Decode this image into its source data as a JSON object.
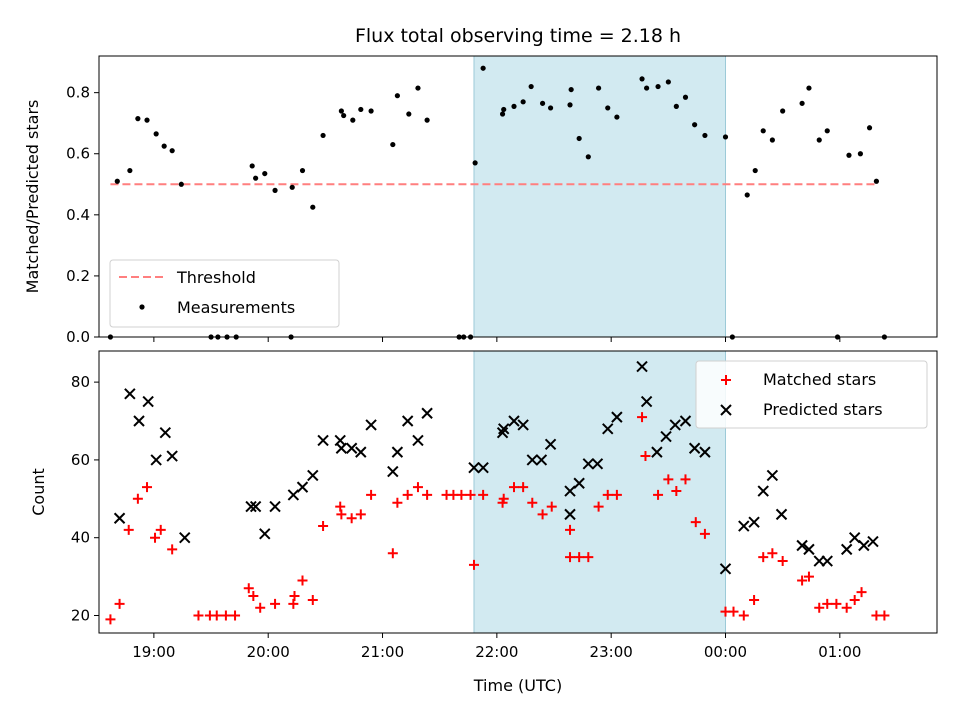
{
  "chart_data": {
    "title": "Flux total observing time = 2.18 h",
    "xlabel": "Time (UTC)",
    "x_units": "hours since 18:00 UTC (tick labels show clock time)",
    "xlim": [
      0.52,
      7.85
    ],
    "x_ticks": [
      {
        "value": 1,
        "label": "19:00"
      },
      {
        "value": 2,
        "label": "20:00"
      },
      {
        "value": 3,
        "label": "21:00"
      },
      {
        "value": 4,
        "label": "22:00"
      },
      {
        "value": 5,
        "label": "23:00"
      },
      {
        "value": 6,
        "label": "00:00"
      },
      {
        "value": 7,
        "label": "01:00"
      }
    ],
    "shaded_span": {
      "x0": 3.8,
      "x1": 6.0,
      "color": "#add8e6"
    },
    "panels": [
      {
        "type": "scatter",
        "ylabel": "Matched/Predicted stars",
        "ylim": [
          0,
          0.92
        ],
        "y_ticks": [
          "0.0",
          "0.2",
          "0.4",
          "0.6",
          "0.8"
        ],
        "y_tick_values": [
          0,
          0.2,
          0.4,
          0.6,
          0.8
        ],
        "legend": {
          "location": "lower left",
          "entries": [
            "Threshold",
            "Measurements"
          ]
        },
        "threshold": {
          "name": "Threshold",
          "y": 0.5,
          "x0": 0.62,
          "x1": 7.32,
          "color": "#ff7f7f",
          "style": "dashed"
        },
        "series": [
          {
            "name": "Measurements",
            "marker": "dot",
            "color": "#000000",
            "points": [
              [
                0.62,
                0.0
              ],
              [
                0.68,
                0.51
              ],
              [
                0.79,
                0.545
              ],
              [
                0.86,
                0.715
              ],
              [
                0.94,
                0.71
              ],
              [
                1.02,
                0.665
              ],
              [
                1.09,
                0.625
              ],
              [
                1.16,
                0.61
              ],
              [
                1.24,
                0.5
              ],
              [
                1.5,
                0.0
              ],
              [
                1.56,
                0.0
              ],
              [
                1.64,
                0.0
              ],
              [
                1.72,
                0.0
              ],
              [
                1.86,
                0.56
              ],
              [
                1.89,
                0.52
              ],
              [
                1.97,
                0.535
              ],
              [
                2.06,
                0.48
              ],
              [
                2.21,
                0.49
              ],
              [
                2.3,
                0.545
              ],
              [
                2.39,
                0.425
              ],
              [
                2.48,
                0.66
              ],
              [
                2.2,
                0.0
              ],
              [
                2.64,
                0.74
              ],
              [
                2.66,
                0.725
              ],
              [
                2.74,
                0.71
              ],
              [
                2.81,
                0.745
              ],
              [
                2.9,
                0.74
              ],
              [
                3.09,
                0.63
              ],
              [
                3.13,
                0.79
              ],
              [
                3.23,
                0.73
              ],
              [
                3.31,
                0.815
              ],
              [
                3.39,
                0.71
              ],
              [
                3.67,
                0.0
              ],
              [
                3.71,
                0.0
              ],
              [
                3.77,
                0.0
              ],
              [
                3.81,
                0.57
              ],
              [
                3.88,
                0.88
              ],
              [
                4.05,
                0.73
              ],
              [
                4.06,
                0.745
              ],
              [
                4.15,
                0.755
              ],
              [
                4.23,
                0.77
              ],
              [
                4.3,
                0.82
              ],
              [
                4.4,
                0.765
              ],
              [
                4.47,
                0.75
              ],
              [
                4.64,
                0.76
              ],
              [
                4.65,
                0.81
              ],
              [
                4.72,
                0.65
              ],
              [
                4.8,
                0.59
              ],
              [
                4.89,
                0.815
              ],
              [
                4.97,
                0.75
              ],
              [
                5.05,
                0.72
              ],
              [
                5.27,
                0.845
              ],
              [
                5.31,
                0.815
              ],
              [
                5.41,
                0.82
              ],
              [
                5.5,
                0.835
              ],
              [
                5.57,
                0.755
              ],
              [
                5.65,
                0.785
              ],
              [
                5.73,
                0.695
              ],
              [
                5.82,
                0.66
              ],
              [
                6.0,
                0.655
              ],
              [
                6.06,
                0.0
              ],
              [
                6.19,
                0.465
              ],
              [
                6.26,
                0.545
              ],
              [
                6.33,
                0.675
              ],
              [
                6.41,
                0.645
              ],
              [
                6.5,
                0.74
              ],
              [
                6.67,
                0.765
              ],
              [
                6.73,
                0.815
              ],
              [
                6.82,
                0.645
              ],
              [
                6.89,
                0.675
              ],
              [
                6.98,
                0.0
              ],
              [
                7.08,
                0.595
              ],
              [
                7.18,
                0.6
              ],
              [
                7.26,
                0.685
              ],
              [
                7.32,
                0.51
              ],
              [
                7.39,
                0.0
              ]
            ]
          }
        ]
      },
      {
        "type": "scatter",
        "ylabel": "Count",
        "ylim": [
          15.5,
          88
        ],
        "y_ticks": [
          "20",
          "40",
          "60",
          "80"
        ],
        "y_tick_values": [
          20,
          40,
          60,
          80
        ],
        "legend": {
          "location": "upper right",
          "entries": [
            "Matched stars",
            "Predicted stars"
          ]
        },
        "series": [
          {
            "name": "Matched stars",
            "marker": "plus",
            "color": "#ff0000",
            "points": [
              [
                0.62,
                19
              ],
              [
                0.7,
                23
              ],
              [
                0.78,
                42
              ],
              [
                0.86,
                50
              ],
              [
                0.94,
                53
              ],
              [
                1.01,
                40
              ],
              [
                1.06,
                42
              ],
              [
                1.16,
                37
              ],
              [
                1.39,
                20
              ],
              [
                1.49,
                20
              ],
              [
                1.55,
                20
              ],
              [
                1.63,
                20
              ],
              [
                1.71,
                20
              ],
              [
                1.83,
                27
              ],
              [
                1.87,
                25
              ],
              [
                1.93,
                22
              ],
              [
                2.06,
                23
              ],
              [
                2.22,
                23
              ],
              [
                2.23,
                25
              ],
              [
                2.3,
                29
              ],
              [
                2.39,
                24
              ],
              [
                2.48,
                43
              ],
              [
                2.63,
                48
              ],
              [
                2.64,
                46
              ],
              [
                2.73,
                45
              ],
              [
                2.81,
                46
              ],
              [
                2.9,
                51
              ],
              [
                3.09,
                36
              ],
              [
                3.13,
                49
              ],
              [
                3.22,
                51
              ],
              [
                3.31,
                53
              ],
              [
                3.39,
                51
              ],
              [
                3.56,
                51
              ],
              [
                3.62,
                51
              ],
              [
                3.69,
                51
              ],
              [
                3.77,
                51
              ],
              [
                3.8,
                33
              ],
              [
                3.88,
                51
              ],
              [
                4.05,
                49
              ],
              [
                4.06,
                50
              ],
              [
                4.15,
                53
              ],
              [
                4.23,
                53
              ],
              [
                4.31,
                49
              ],
              [
                4.4,
                46
              ],
              [
                4.48,
                48
              ],
              [
                4.64,
                42
              ],
              [
                4.64,
                35
              ],
              [
                4.72,
                35
              ],
              [
                4.8,
                35
              ],
              [
                4.89,
                48
              ],
              [
                4.97,
                51
              ],
              [
                5.05,
                51
              ],
              [
                5.27,
                71
              ],
              [
                5.3,
                61
              ],
              [
                5.41,
                51
              ],
              [
                5.5,
                55
              ],
              [
                5.57,
                52
              ],
              [
                5.65,
                55
              ],
              [
                5.74,
                44
              ],
              [
                5.82,
                41
              ],
              [
                6.0,
                21
              ],
              [
                6.07,
                21
              ],
              [
                6.16,
                20
              ],
              [
                6.25,
                24
              ],
              [
                6.33,
                35
              ],
              [
                6.41,
                36
              ],
              [
                6.5,
                34
              ],
              [
                6.67,
                29
              ],
              [
                6.73,
                30
              ],
              [
                6.82,
                22
              ],
              [
                6.89,
                23
              ],
              [
                6.97,
                23
              ],
              [
                7.06,
                22
              ],
              [
                7.13,
                24
              ],
              [
                7.19,
                26
              ],
              [
                7.32,
                20
              ],
              [
                7.39,
                20
              ]
            ]
          },
          {
            "name": "Predicted stars",
            "marker": "x",
            "color": "#000000",
            "points": [
              [
                0.7,
                45
              ],
              [
                0.79,
                77
              ],
              [
                0.87,
                70
              ],
              [
                0.95,
                75
              ],
              [
                1.02,
                60
              ],
              [
                1.1,
                67
              ],
              [
                1.16,
                61
              ],
              [
                1.27,
                40
              ],
              [
                1.85,
                48
              ],
              [
                1.89,
                48
              ],
              [
                1.97,
                41
              ],
              [
                2.06,
                48
              ],
              [
                2.22,
                51
              ],
              [
                2.3,
                53
              ],
              [
                2.39,
                56
              ],
              [
                2.48,
                65
              ],
              [
                2.63,
                65
              ],
              [
                2.64,
                63
              ],
              [
                2.73,
                63
              ],
              [
                2.81,
                62
              ],
              [
                2.9,
                69
              ],
              [
                3.09,
                57
              ],
              [
                3.13,
                62
              ],
              [
                3.22,
                70
              ],
              [
                3.31,
                65
              ],
              [
                3.39,
                72
              ],
              [
                3.8,
                58
              ],
              [
                3.88,
                58
              ],
              [
                4.05,
                67
              ],
              [
                4.06,
                68
              ],
              [
                4.15,
                70
              ],
              [
                4.23,
                69
              ],
              [
                4.31,
                60
              ],
              [
                4.39,
                60
              ],
              [
                4.47,
                64
              ],
              [
                4.64,
                46
              ],
              [
                4.64,
                52
              ],
              [
                4.72,
                54
              ],
              [
                4.8,
                59
              ],
              [
                4.88,
                59
              ],
              [
                4.97,
                68
              ],
              [
                5.05,
                71
              ],
              [
                5.27,
                84
              ],
              [
                5.31,
                75
              ],
              [
                5.4,
                62
              ],
              [
                5.48,
                66
              ],
              [
                5.56,
                69
              ],
              [
                5.65,
                70
              ],
              [
                5.73,
                63
              ],
              [
                5.82,
                62
              ],
              [
                6.0,
                32
              ],
              [
                6.16,
                43
              ],
              [
                6.25,
                44
              ],
              [
                6.33,
                52
              ],
              [
                6.41,
                56
              ],
              [
                6.49,
                46
              ],
              [
                6.67,
                38
              ],
              [
                6.73,
                37
              ],
              [
                6.82,
                34
              ],
              [
                6.89,
                34
              ],
              [
                7.06,
                37
              ],
              [
                7.13,
                40
              ],
              [
                7.21,
                38
              ],
              [
                7.29,
                39
              ]
            ]
          }
        ]
      }
    ]
  }
}
